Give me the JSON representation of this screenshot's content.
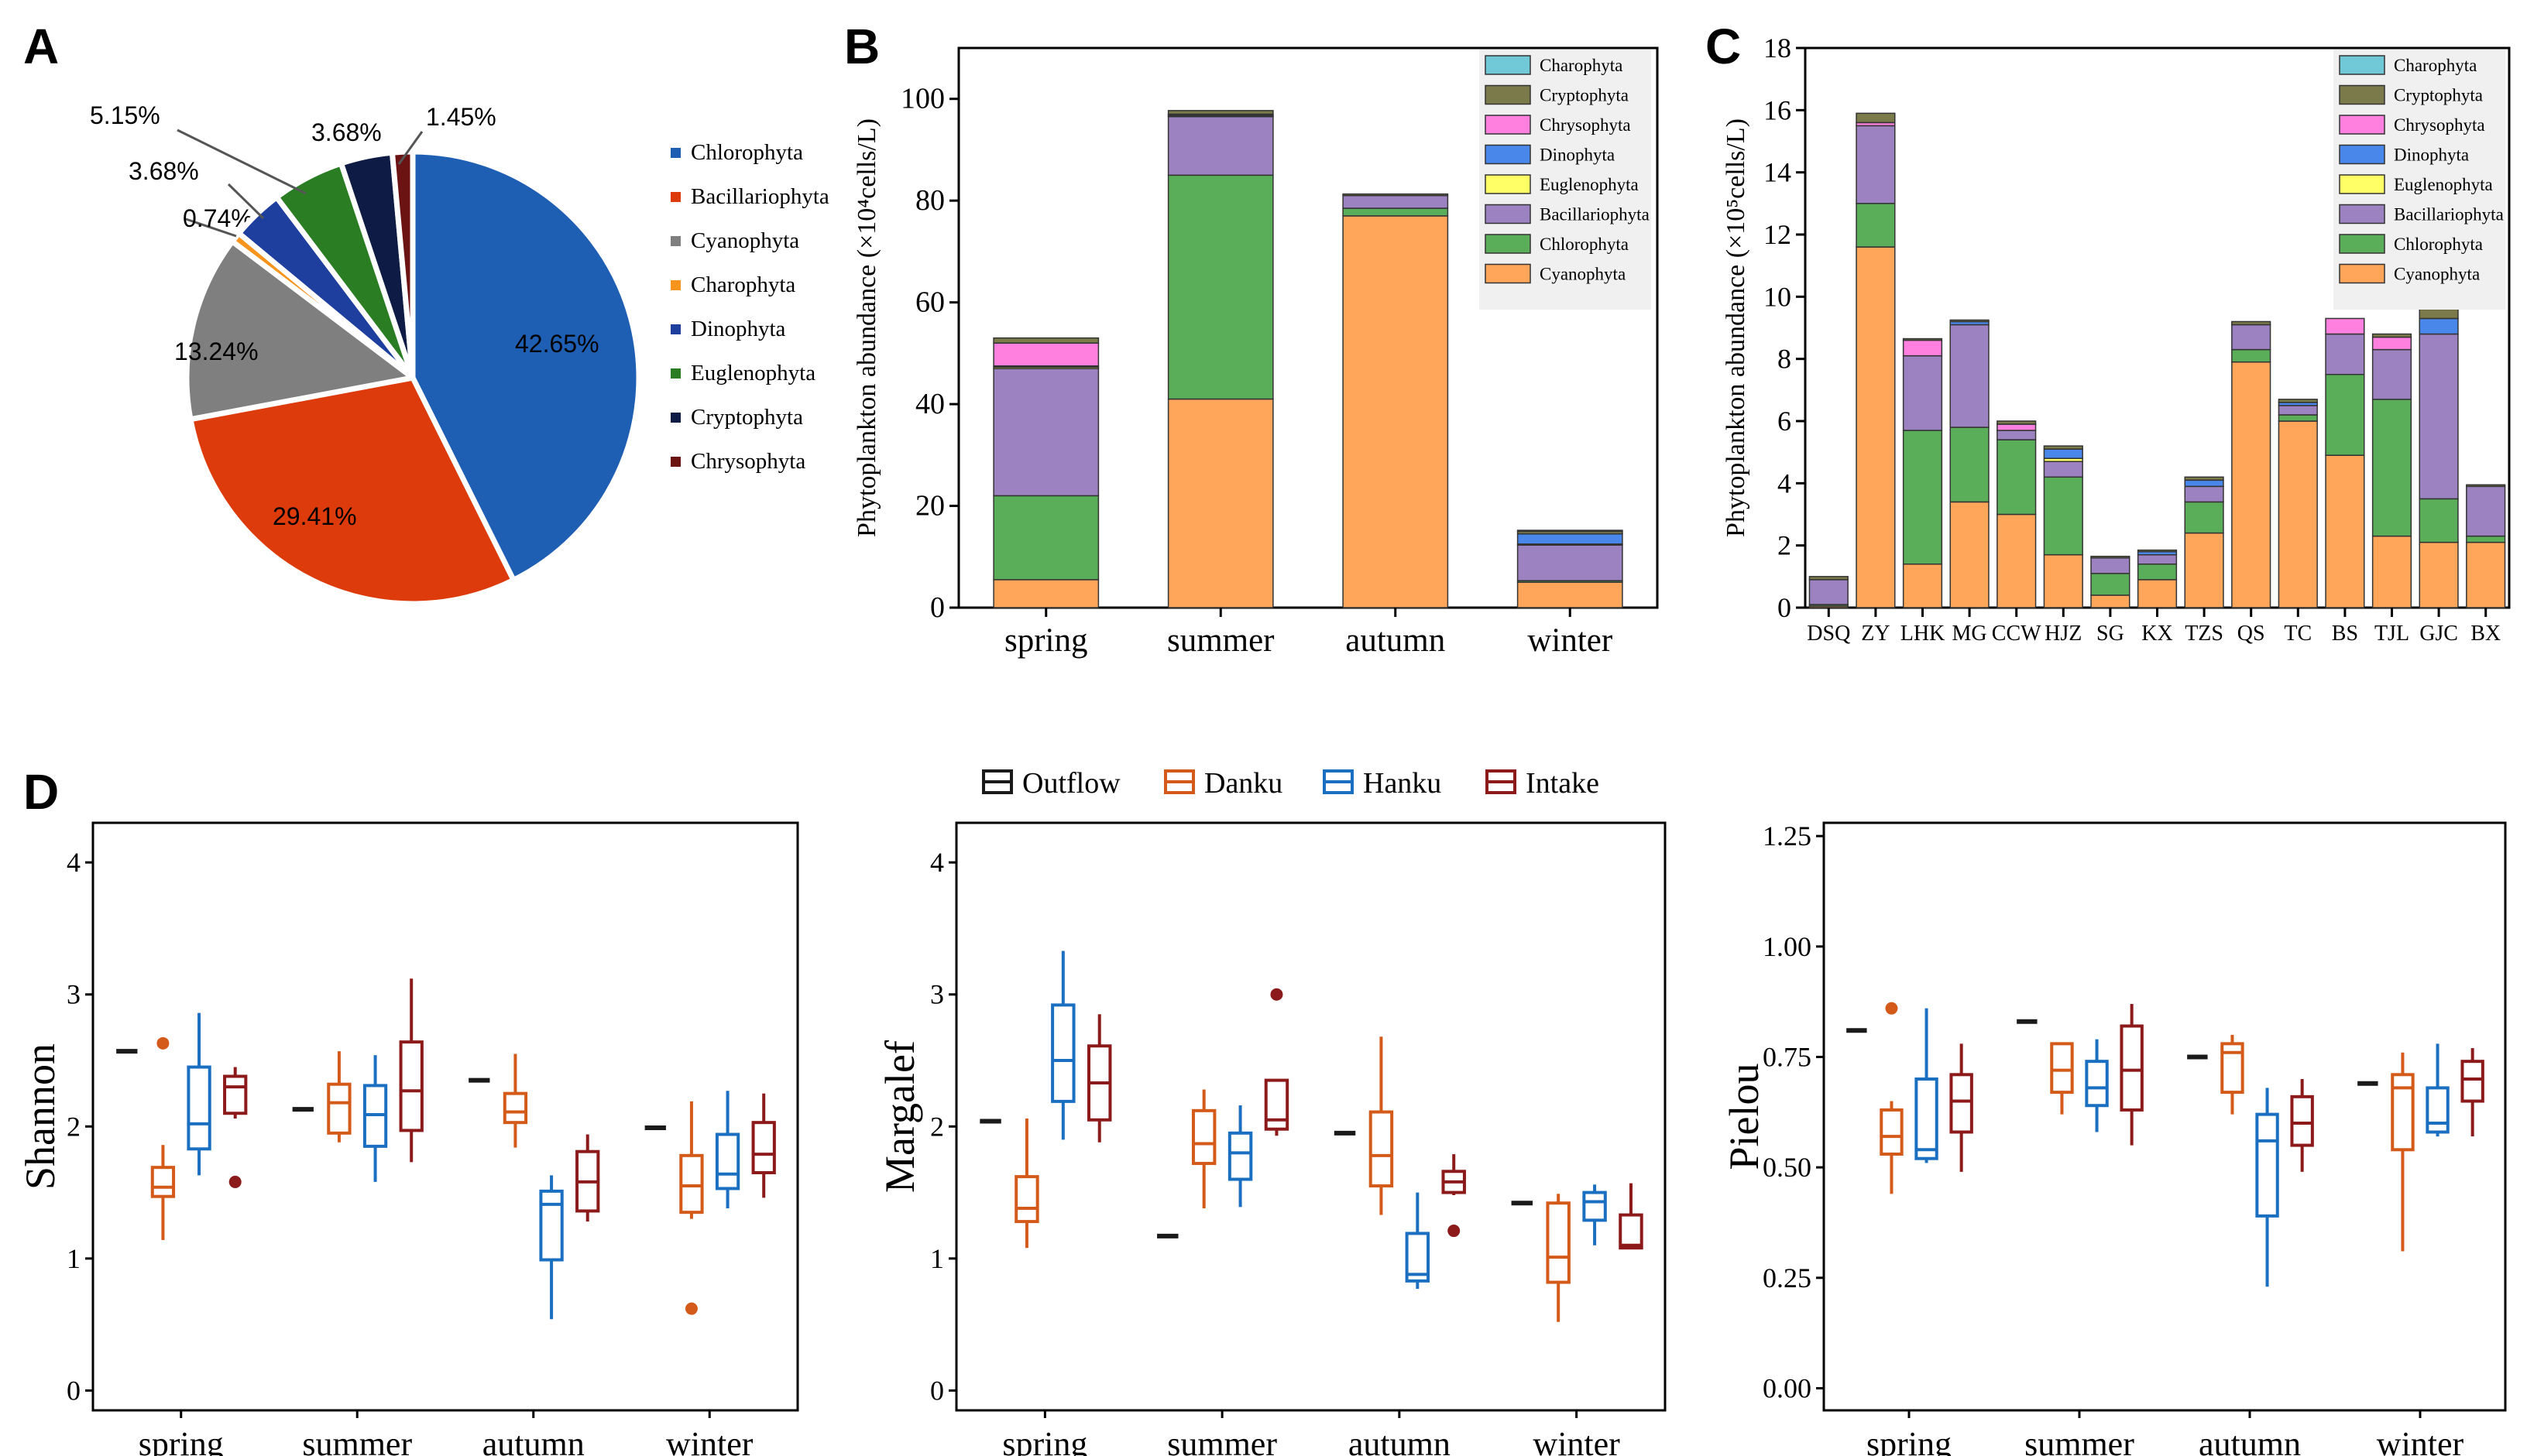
{
  "palette": {
    "Chlorophyta": "#1f5fb3",
    "Bacillariophyta": "#dd3b0b",
    "Cyanophyta": "#7f7f7f",
    "Charophyta": "#f7941d",
    "Dinophyta": "#1f3f9f",
    "Euglenophyta": "#2a7d22",
    "Cryptophyta": "#0d1b45",
    "Chrysophyta": "#6b1212",
    "stack": {
      "Charophyta": "#71c8d6",
      "Cryptophyta": "#7a7a4a",
      "Chrysophyta": "#ff80df",
      "Dinophyta": "#4a87ea",
      "Euglenophyta": "#ffff66",
      "Bacillariophyta": "#9c82c0",
      "Chlorophyta": "#5aae5a",
      "Cyanophyta": "#ffa65a"
    },
    "groups": {
      "Outflow": "#1a1a1a",
      "Danku": "#d45a1a",
      "Hanku": "#1b6fc0",
      "Intake": "#8c1a1a"
    }
  },
  "chart_data": [
    {
      "id": "A",
      "panel_label": "A",
      "type": "pie",
      "legend": [
        "Chlorophyta",
        "Bacillariophyta",
        "Cyanophyta",
        "Charophyta",
        "Dinophyta",
        "Euglenophyta",
        "Cryptophyta",
        "Chrysophyta"
      ],
      "slices": [
        {
          "name": "Chlorophyta",
          "value": 42.65,
          "label": "42.65%"
        },
        {
          "name": "Bacillariophyta",
          "value": 29.41,
          "label": "29.41%"
        },
        {
          "name": "Cyanophyta",
          "value": 13.24,
          "label": "13.24%"
        },
        {
          "name": "Charophyta",
          "value": 0.74,
          "label": "0.74%"
        },
        {
          "name": "Dinophyta",
          "value": 3.68,
          "label": "3.68%"
        },
        {
          "name": "Euglenophyta",
          "value": 5.15,
          "label": "5.15%"
        },
        {
          "name": "Cryptophyta",
          "value": 3.68,
          "label": "3.68%"
        },
        {
          "name": "Chrysophyta",
          "value": 1.45,
          "label": "1.45%"
        }
      ]
    },
    {
      "id": "B",
      "panel_label": "B",
      "type": "bar",
      "stacked": true,
      "categories": [
        "spring",
        "summer",
        "autumn",
        "winter"
      ],
      "ylabel": "Phytoplankton abundance (×10⁴cells/L)",
      "ylim": [
        0,
        110
      ],
      "yticks": [
        0,
        20,
        40,
        60,
        80,
        100
      ],
      "legend": [
        "Charophyta",
        "Cryptophyta",
        "Chrysophyta",
        "Dinophyta",
        "Euglenophyta",
        "Bacillariophyta",
        "Chlorophyta",
        "Cyanophyta"
      ],
      "series": [
        {
          "name": "Cyanophyta",
          "values": [
            5.5,
            41,
            77,
            5
          ]
        },
        {
          "name": "Chlorophyta",
          "values": [
            16.5,
            44,
            1.5,
            0.3
          ]
        },
        {
          "name": "Bacillariophyta",
          "values": [
            25,
            11.5,
            2.5,
            7
          ]
        },
        {
          "name": "Euglenophyta",
          "values": [
            0.3,
            0.1,
            0,
            0.2
          ]
        },
        {
          "name": "Dinophyta",
          "values": [
            0.2,
            0.2,
            0,
            2
          ]
        },
        {
          "name": "Chrysophyta",
          "values": [
            4.5,
            0.2,
            0,
            0
          ]
        },
        {
          "name": "Cryptophyta",
          "values": [
            1,
            0.7,
            0.3,
            0.5
          ]
        },
        {
          "name": "Charophyta",
          "values": [
            0,
            0,
            0,
            0.2
          ]
        }
      ]
    },
    {
      "id": "C",
      "panel_label": "C",
      "type": "bar",
      "stacked": true,
      "categories": [
        "DSQ",
        "ZY",
        "LHK",
        "MG",
        "CCW",
        "HJZ",
        "SG",
        "KX",
        "TZS",
        "QS",
        "TC",
        "BS",
        "TJL",
        "GJC",
        "BX"
      ],
      "tick_labels": [
        "DSQ",
        "ZY",
        "LHK",
        "MG",
        "CCW",
        "HJZ",
        "SG",
        "KX",
        "TZS",
        "QS",
        "TC",
        "BS",
        "TJL",
        "GJC",
        "BX"
      ],
      "ylabel": "Phytoplankton abundance (×10⁵cells/L)",
      "ylim": [
        0,
        18
      ],
      "yticks": [
        0,
        2,
        4,
        6,
        8,
        10,
        12,
        14,
        16,
        18
      ],
      "legend": [
        "Charophyta",
        "Cryptophyta",
        "Chrysophyta",
        "Dinophyta",
        "Euglenophyta",
        "Bacillariophyta",
        "Chlorophyta",
        "Cyanophyta"
      ],
      "series": [
        {
          "name": "Cyanophyta",
          "values": [
            0.05,
            11.6,
            1.4,
            3.4,
            3.0,
            1.7,
            0.4,
            0.9,
            2.4,
            7.9,
            6.0,
            4.9,
            2.3,
            2.1,
            2.1
          ]
        },
        {
          "name": "Chlorophyta",
          "values": [
            0.05,
            1.4,
            4.3,
            2.4,
            2.4,
            2.5,
            0.7,
            0.5,
            1.0,
            0.4,
            0.2,
            2.6,
            4.4,
            1.4,
            0.2
          ]
        },
        {
          "name": "Bacillariophyta",
          "values": [
            0.8,
            2.5,
            2.4,
            3.3,
            0.3,
            0.5,
            0.5,
            0.3,
            0.5,
            0.8,
            0.3,
            1.3,
            1.6,
            5.3,
            1.6
          ]
        },
        {
          "name": "Euglenophyta",
          "values": [
            0,
            0,
            0,
            0,
            0,
            0.1,
            0,
            0,
            0,
            0,
            0,
            0,
            0,
            0,
            0
          ]
        },
        {
          "name": "Dinophyta",
          "values": [
            0,
            0,
            0,
            0.1,
            0,
            0.3,
            0,
            0.1,
            0.2,
            0,
            0.1,
            0,
            0,
            0.5,
            0
          ]
        },
        {
          "name": "Chrysophyta",
          "values": [
            0,
            0.1,
            0.5,
            0,
            0.2,
            0,
            0,
            0,
            0,
            0,
            0,
            0.5,
            0.4,
            0,
            0
          ]
        },
        {
          "name": "Cryptophyta",
          "values": [
            0.1,
            0.3,
            0.05,
            0.05,
            0.1,
            0.1,
            0.05,
            0.05,
            0.1,
            0.1,
            0.1,
            0,
            0.1,
            0.3,
            0.05
          ]
        },
        {
          "name": "Charophyta",
          "values": [
            0,
            0,
            0,
            0,
            0,
            0,
            0,
            0,
            0,
            0,
            0,
            0,
            0,
            0,
            0
          ]
        }
      ]
    },
    {
      "id": "D-shannon",
      "panel_label": "D",
      "type": "box",
      "ylabel": "Shannon",
      "categories": [
        "spring",
        "summer",
        "autumn",
        "winter"
      ],
      "groups": [
        "Outflow",
        "Danku",
        "Hanku",
        "Intake"
      ],
      "ylim": [
        -0.15,
        4.3
      ],
      "yticks": [
        0,
        1,
        2,
        3,
        4
      ],
      "tick_labels": [
        "0",
        "1",
        "2",
        "3",
        "4"
      ],
      "boxes": [
        {
          "season": "spring",
          "group": "Outflow",
          "min": 2.57,
          "q1": 2.57,
          "median": 2.57,
          "q3": 2.57,
          "max": 2.57,
          "outliers": []
        },
        {
          "season": "spring",
          "group": "Danku",
          "min": 1.14,
          "q1": 1.47,
          "median": 1.54,
          "q3": 1.69,
          "max": 1.86,
          "outliers": [
            2.63
          ]
        },
        {
          "season": "spring",
          "group": "Hanku",
          "min": 1.63,
          "q1": 1.83,
          "median": 2.02,
          "q3": 2.45,
          "max": 2.86,
          "outliers": []
        },
        {
          "season": "spring",
          "group": "Intake",
          "min": 2.06,
          "q1": 2.1,
          "median": 2.3,
          "q3": 2.38,
          "max": 2.45,
          "outliers": [
            1.58
          ]
        },
        {
          "season": "summer",
          "group": "Outflow",
          "min": 2.13,
          "q1": 2.13,
          "median": 2.13,
          "q3": 2.13,
          "max": 2.13,
          "outliers": []
        },
        {
          "season": "summer",
          "group": "Danku",
          "min": 1.88,
          "q1": 1.95,
          "median": 2.18,
          "q3": 2.32,
          "max": 2.57,
          "outliers": []
        },
        {
          "season": "summer",
          "group": "Hanku",
          "min": 1.58,
          "q1": 1.85,
          "median": 2.09,
          "q3": 2.31,
          "max": 2.54,
          "outliers": []
        },
        {
          "season": "summer",
          "group": "Intake",
          "min": 1.73,
          "q1": 1.97,
          "median": 2.27,
          "q3": 2.64,
          "max": 3.12,
          "outliers": []
        },
        {
          "season": "autumn",
          "group": "Outflow",
          "min": 2.35,
          "q1": 2.35,
          "median": 2.35,
          "q3": 2.35,
          "max": 2.35,
          "outliers": []
        },
        {
          "season": "autumn",
          "group": "Danku",
          "min": 1.84,
          "q1": 2.03,
          "median": 2.11,
          "q3": 2.25,
          "max": 2.55,
          "outliers": []
        },
        {
          "season": "autumn",
          "group": "Hanku",
          "min": 0.54,
          "q1": 0.99,
          "median": 1.41,
          "q3": 1.51,
          "max": 1.63,
          "outliers": []
        },
        {
          "season": "autumn",
          "group": "Intake",
          "min": 1.28,
          "q1": 1.36,
          "median": 1.58,
          "q3": 1.81,
          "max": 1.94,
          "outliers": []
        },
        {
          "season": "winter",
          "group": "Outflow",
          "min": 1.99,
          "q1": 1.99,
          "median": 1.99,
          "q3": 1.99,
          "max": 1.99,
          "outliers": []
        },
        {
          "season": "winter",
          "group": "Danku",
          "min": 1.3,
          "q1": 1.35,
          "median": 1.55,
          "q3": 1.78,
          "max": 2.19,
          "outliers": [
            0.62
          ]
        },
        {
          "season": "winter",
          "group": "Hanku",
          "min": 1.38,
          "q1": 1.53,
          "median": 1.64,
          "q3": 1.94,
          "max": 2.27,
          "outliers": []
        },
        {
          "season": "winter",
          "group": "Intake",
          "min": 1.46,
          "q1": 1.65,
          "median": 1.79,
          "q3": 2.03,
          "max": 2.25,
          "outliers": []
        }
      ]
    },
    {
      "id": "D-margalef",
      "type": "box",
      "ylabel": "Margalef",
      "categories": [
        "spring",
        "summer",
        "autumn",
        "winter"
      ],
      "groups": [
        "Outflow",
        "Danku",
        "Hanku",
        "Intake"
      ],
      "legend_label": "Outflow Danku Hanku Intake",
      "ylim": [
        -0.15,
        4.3
      ],
      "yticks": [
        0,
        1,
        2,
        3,
        4
      ],
      "tick_labels": [
        "0",
        "1",
        "2",
        "3",
        "4"
      ],
      "boxes": [
        {
          "season": "spring",
          "group": "Outflow",
          "min": 2.04,
          "q1": 2.04,
          "median": 2.04,
          "q3": 2.04,
          "max": 2.04,
          "outliers": []
        },
        {
          "season": "spring",
          "group": "Danku",
          "min": 1.08,
          "q1": 1.28,
          "median": 1.38,
          "q3": 1.62,
          "max": 2.06,
          "outliers": []
        },
        {
          "season": "spring",
          "group": "Hanku",
          "min": 1.9,
          "q1": 2.19,
          "median": 2.5,
          "q3": 2.92,
          "max": 3.33,
          "outliers": []
        },
        {
          "season": "spring",
          "group": "Intake",
          "min": 1.88,
          "q1": 2.05,
          "median": 2.33,
          "q3": 2.61,
          "max": 2.85,
          "outliers": []
        },
        {
          "season": "summer",
          "group": "Outflow",
          "min": 1.17,
          "q1": 1.17,
          "median": 1.17,
          "q3": 1.17,
          "max": 1.17,
          "outliers": []
        },
        {
          "season": "summer",
          "group": "Danku",
          "min": 1.38,
          "q1": 1.72,
          "median": 1.87,
          "q3": 2.12,
          "max": 2.28,
          "outliers": []
        },
        {
          "season": "summer",
          "group": "Hanku",
          "min": 1.39,
          "q1": 1.6,
          "median": 1.8,
          "q3": 1.95,
          "max": 2.16,
          "outliers": []
        },
        {
          "season": "summer",
          "group": "Intake",
          "min": 1.93,
          "q1": 1.98,
          "median": 2.05,
          "q3": 2.35,
          "max": 2.35,
          "outliers": [
            3.0
          ]
        },
        {
          "season": "autumn",
          "group": "Outflow",
          "min": 1.95,
          "q1": 1.95,
          "median": 1.95,
          "q3": 1.95,
          "max": 1.95,
          "outliers": []
        },
        {
          "season": "autumn",
          "group": "Danku",
          "min": 1.33,
          "q1": 1.55,
          "median": 1.78,
          "q3": 2.11,
          "max": 2.68,
          "outliers": []
        },
        {
          "season": "autumn",
          "group": "Hanku",
          "min": 0.77,
          "q1": 0.83,
          "median": 0.88,
          "q3": 1.19,
          "max": 1.5,
          "outliers": []
        },
        {
          "season": "autumn",
          "group": "Intake",
          "min": 1.48,
          "q1": 1.5,
          "median": 1.58,
          "q3": 1.66,
          "max": 1.79,
          "outliers": [
            1.21
          ]
        },
        {
          "season": "winter",
          "group": "Outflow",
          "min": 1.42,
          "q1": 1.42,
          "median": 1.42,
          "q3": 1.42,
          "max": 1.42,
          "outliers": []
        },
        {
          "season": "winter",
          "group": "Danku",
          "min": 0.52,
          "q1": 0.82,
          "median": 1.01,
          "q3": 1.42,
          "max": 1.49,
          "outliers": []
        },
        {
          "season": "winter",
          "group": "Hanku",
          "min": 1.1,
          "q1": 1.29,
          "median": 1.43,
          "q3": 1.5,
          "max": 1.56,
          "outliers": []
        },
        {
          "season": "winter",
          "group": "Intake",
          "min": 1.07,
          "q1": 1.08,
          "median": 1.1,
          "q3": 1.33,
          "max": 1.57,
          "outliers": []
        }
      ]
    },
    {
      "id": "D-pielou",
      "type": "box",
      "ylabel": "Pielou",
      "categories": [
        "spring",
        "summer",
        "autumn",
        "winter"
      ],
      "groups": [
        "Outflow",
        "Danku",
        "Hanku",
        "Intake"
      ],
      "ylim": [
        -0.05,
        1.28
      ],
      "yticks": [
        0,
        0.25,
        0.5,
        0.75,
        1.0,
        1.25
      ],
      "tick_labels": [
        "0.00",
        "0.25",
        "0.50",
        "0.75",
        "1.00",
        "1.25"
      ],
      "boxes": [
        {
          "season": "spring",
          "group": "Outflow",
          "min": 0.81,
          "q1": 0.81,
          "median": 0.81,
          "q3": 0.81,
          "max": 0.81,
          "outliers": []
        },
        {
          "season": "spring",
          "group": "Danku",
          "min": 0.44,
          "q1": 0.53,
          "median": 0.57,
          "q3": 0.63,
          "max": 0.65,
          "outliers": [
            0.86
          ]
        },
        {
          "season": "spring",
          "group": "Hanku",
          "min": 0.51,
          "q1": 0.52,
          "median": 0.54,
          "q3": 0.7,
          "max": 0.86,
          "outliers": []
        },
        {
          "season": "spring",
          "group": "Intake",
          "min": 0.49,
          "q1": 0.58,
          "median": 0.65,
          "q3": 0.71,
          "max": 0.78,
          "outliers": []
        },
        {
          "season": "summer",
          "group": "Outflow",
          "min": 0.83,
          "q1": 0.83,
          "median": 0.83,
          "q3": 0.83,
          "max": 0.83,
          "outliers": []
        },
        {
          "season": "summer",
          "group": "Danku",
          "min": 0.62,
          "q1": 0.67,
          "median": 0.72,
          "q3": 0.78,
          "max": 0.78,
          "outliers": []
        },
        {
          "season": "summer",
          "group": "Hanku",
          "min": 0.58,
          "q1": 0.64,
          "median": 0.68,
          "q3": 0.74,
          "max": 0.79,
          "outliers": []
        },
        {
          "season": "summer",
          "group": "Intake",
          "min": 0.55,
          "q1": 0.63,
          "median": 0.72,
          "q3": 0.82,
          "max": 0.87,
          "outliers": []
        },
        {
          "season": "autumn",
          "group": "Outflow",
          "min": 0.75,
          "q1": 0.75,
          "median": 0.75,
          "q3": 0.75,
          "max": 0.75,
          "outliers": []
        },
        {
          "season": "autumn",
          "group": "Danku",
          "min": 0.62,
          "q1": 0.67,
          "median": 0.76,
          "q3": 0.78,
          "max": 0.8,
          "outliers": []
        },
        {
          "season": "autumn",
          "group": "Hanku",
          "min": 0.23,
          "q1": 0.39,
          "median": 0.56,
          "q3": 0.62,
          "max": 0.68,
          "outliers": []
        },
        {
          "season": "autumn",
          "group": "Intake",
          "min": 0.49,
          "q1": 0.55,
          "median": 0.6,
          "q3": 0.66,
          "max": 0.7,
          "outliers": []
        },
        {
          "season": "winter",
          "group": "Outflow",
          "min": 0.69,
          "q1": 0.69,
          "median": 0.69,
          "q3": 0.69,
          "max": 0.69,
          "outliers": []
        },
        {
          "season": "winter",
          "group": "Danku",
          "min": 0.31,
          "q1": 0.54,
          "median": 0.68,
          "q3": 0.71,
          "max": 0.76,
          "outliers": []
        },
        {
          "season": "winter",
          "group": "Hanku",
          "min": 0.57,
          "q1": 0.58,
          "median": 0.6,
          "q3": 0.68,
          "max": 0.78,
          "outliers": []
        },
        {
          "season": "winter",
          "group": "Intake",
          "min": 0.57,
          "q1": 0.65,
          "median": 0.7,
          "q3": 0.74,
          "max": 0.77,
          "outliers": []
        }
      ]
    }
  ]
}
